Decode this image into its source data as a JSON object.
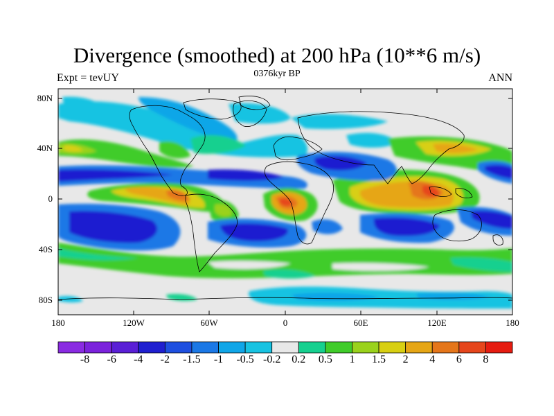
{
  "title": "Divergence (smoothed) at 200 hPa (10**6 m/s)",
  "subtitle_left": "Expt = tevUY",
  "subtitle_center": "0376kyr BP",
  "subtitle_right": "ANN",
  "lat_labels": [
    "80N",
    "40N",
    "0",
    "40S",
    "80S"
  ],
  "lon_labels": [
    "180",
    "120W",
    "60W",
    "0",
    "60E",
    "120E",
    "180"
  ],
  "colorbar": {
    "labels": [
      "-8",
      "-6",
      "-4",
      "-2",
      "-1.5",
      "-1",
      "-0.5",
      "-0.2",
      "0.2",
      "0.5",
      "1",
      "1.5",
      "2",
      "4",
      "6",
      "8"
    ],
    "colors": [
      "#8a2be2",
      "#7b22dc",
      "#5a1fd6",
      "#1f1fd0",
      "#1e4fe0",
      "#1b78e6",
      "#10a6e8",
      "#18c3e2",
      "#e8e8e8",
      "#16d08f",
      "#40cc2a",
      "#9ad21c",
      "#d8cf12",
      "#e6a615",
      "#e5761a",
      "#e6461c",
      "#e61c10"
    ]
  }
}
